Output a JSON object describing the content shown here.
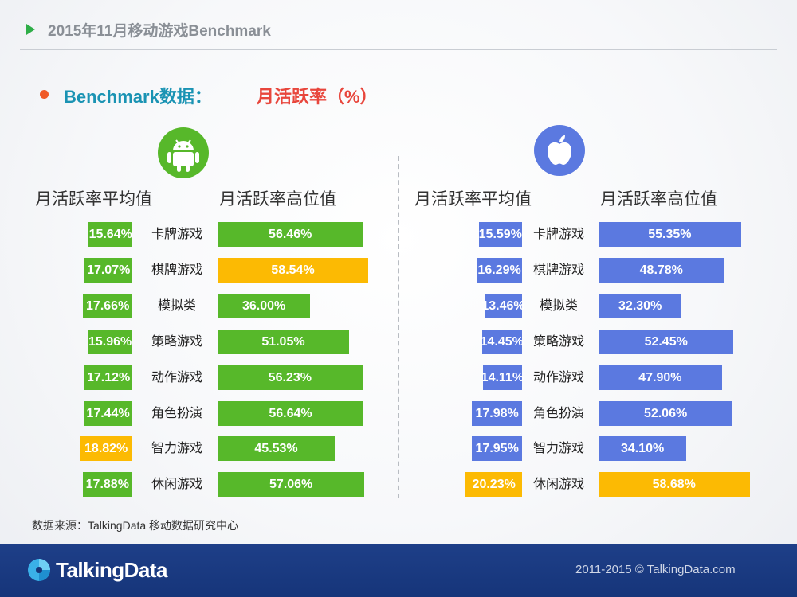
{
  "header": {
    "title": "2015年11月移动游戏Benchmark"
  },
  "subtitle": {
    "prefix": "Benchmark数据：",
    "metric": "月活跃率（%）"
  },
  "colors": {
    "android": "#57b82a",
    "ios": "#5b79e0",
    "highlight": "#fcba03",
    "title_gray": "#8a8f96",
    "subtitle_blue": "#1a93b3",
    "subtitle_red": "#e8463c",
    "footer": "#1e3f88"
  },
  "panels": {
    "android": {
      "avg_header": "月活跃率平均值",
      "high_header": "月活跃率高位值"
    },
    "ios": {
      "avg_header": "月活跃率平均值",
      "high_header": "月活跃率高位值"
    }
  },
  "chart_data": [
    {
      "type": "bar",
      "platform_icon": "android-icon",
      "categories": [
        "卡牌游戏",
        "棋牌游戏",
        "模拟类",
        "策略游戏",
        "动作游戏",
        "角色扮演",
        "智力游戏",
        "休闲游戏"
      ],
      "series": [
        {
          "name": "月活跃率平均值",
          "values": [
            15.64,
            17.07,
            17.66,
            15.96,
            17.12,
            17.44,
            18.82,
            17.88
          ],
          "labels": [
            "15.64%",
            "17.07%",
            "17.66%",
            "15.96%",
            "17.12%",
            "17.44%",
            "18.82%",
            "17.88%"
          ],
          "highlight_index": 6
        },
        {
          "name": "月活跃率高位值",
          "values": [
            56.46,
            58.54,
            36.0,
            51.05,
            56.23,
            56.64,
            45.53,
            57.06
          ],
          "labels": [
            "56.46%",
            "58.54%",
            "36.00%",
            "51.05%",
            "56.23%",
            "56.64%",
            "45.53%",
            "57.06%"
          ],
          "highlight_index": 1
        }
      ]
    },
    {
      "type": "bar",
      "platform_icon": "apple-icon",
      "categories": [
        "卡牌游戏",
        "棋牌游戏",
        "模拟类",
        "策略游戏",
        "动作游戏",
        "角色扮演",
        "智力游戏",
        "休闲游戏"
      ],
      "series": [
        {
          "name": "月活跃率平均值",
          "values": [
            15.59,
            16.29,
            13.46,
            14.45,
            14.11,
            17.98,
            17.95,
            20.23
          ],
          "labels": [
            "15.59%",
            "16.29%",
            "13.46%",
            "14.45%",
            "14.11%",
            "17.98%",
            "17.95%",
            "20.23%"
          ],
          "highlight_index": 7
        },
        {
          "name": "月活跃率高位值",
          "values": [
            55.35,
            48.78,
            32.3,
            52.45,
            47.9,
            52.06,
            34.1,
            58.68
          ],
          "labels": [
            "55.35%",
            "48.78%",
            "32.30%",
            "52.45%",
            "47.90%",
            "52.06%",
            "34.10%",
            "58.68%"
          ],
          "highlight_index": 7
        }
      ]
    }
  ],
  "source": "数据来源：TalkingData 移动数据研究中心",
  "footer": {
    "brand": "TalkingData",
    "copyright": "2011-2015 © TalkingData.com"
  }
}
